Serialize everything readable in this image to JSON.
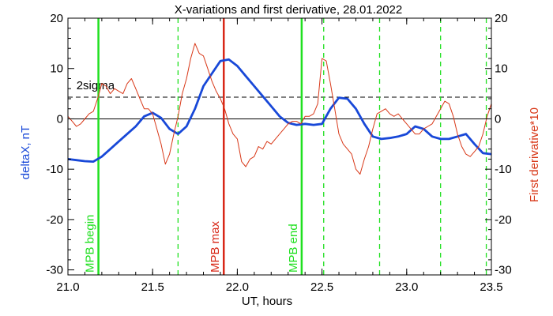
{
  "chart_data": {
    "type": "line",
    "title": "X-variations and first derivative, 28.01.2022",
    "xlabel": "UT, hours",
    "ylabel_left": "deltaX, nT",
    "ylabel_right": "First derivative*10",
    "xlim": [
      21.0,
      23.5
    ],
    "ylim": [
      -31,
      20
    ],
    "xticks": [
      21.0,
      21.5,
      22.0,
      22.5,
      23.0,
      23.5
    ],
    "xtick_labels": [
      "21.0",
      "21.5",
      "22.0",
      "22.5",
      "23.0",
      "23.5"
    ],
    "yticks": [
      20,
      10,
      0,
      -10,
      -20,
      -30
    ],
    "ytick_labels": [
      "20",
      "10",
      "0",
      "-10",
      "-20",
      "-30"
    ],
    "sigma_level": 4.3,
    "sigma_label": "2sigma",
    "colors": {
      "deltaX": "#1848d8",
      "derivative": "#d83818",
      "mpb_boundary": "#20e020",
      "mpb_max": "#d82818",
      "axis": "#000000"
    },
    "series": [
      {
        "name": "deltaX",
        "x": [
          21.0,
          21.05,
          21.1,
          21.15,
          21.2,
          21.25,
          21.3,
          21.35,
          21.4,
          21.45,
          21.5,
          21.55,
          21.6,
          21.65,
          21.7,
          21.75,
          21.8,
          21.85,
          21.9,
          21.95,
          22.0,
          22.05,
          22.1,
          22.15,
          22.2,
          22.25,
          22.3,
          22.35,
          22.4,
          22.45,
          22.5,
          22.55,
          22.6,
          22.65,
          22.7,
          22.75,
          22.8,
          22.85,
          22.9,
          22.95,
          23.0,
          23.05,
          23.1,
          23.15,
          23.2,
          23.25,
          23.3,
          23.35,
          23.4,
          23.45,
          23.5
        ],
        "y": [
          -8.0,
          -8.2,
          -8.4,
          -8.5,
          -7.5,
          -6.0,
          -4.5,
          -3.0,
          -1.5,
          0.5,
          1.2,
          0.2,
          -2.0,
          -3.0,
          -1.5,
          2.0,
          6.5,
          9.0,
          11.5,
          11.8,
          10.5,
          8.5,
          6.5,
          4.5,
          2.5,
          0.5,
          -0.8,
          -1.2,
          -1.0,
          -1.2,
          -1.0,
          2.0,
          4.2,
          4.0,
          2.0,
          -1.0,
          -3.5,
          -4.0,
          -3.8,
          -3.5,
          -3.0,
          -1.5,
          -2.0,
          -3.5,
          -4.0,
          -4.0,
          -3.5,
          -3.0,
          -5.0,
          -6.8,
          -7.0
        ]
      },
      {
        "name": "First derivative*10",
        "x": [
          21.0,
          21.025,
          21.05,
          21.075,
          21.1,
          21.125,
          21.15,
          21.175,
          21.2,
          21.225,
          21.25,
          21.275,
          21.3,
          21.325,
          21.35,
          21.375,
          21.4,
          21.425,
          21.45,
          21.475,
          21.5,
          21.525,
          21.55,
          21.575,
          21.6,
          21.625,
          21.65,
          21.675,
          21.7,
          21.725,
          21.75,
          21.775,
          21.8,
          21.825,
          21.85,
          21.875,
          21.9,
          21.925,
          21.95,
          21.975,
          22.0,
          22.025,
          22.05,
          22.075,
          22.1,
          22.125,
          22.15,
          22.175,
          22.2,
          22.225,
          22.25,
          22.275,
          22.3,
          22.325,
          22.35,
          22.375,
          22.4,
          22.425,
          22.45,
          22.475,
          22.5,
          22.525,
          22.55,
          22.575,
          22.6,
          22.625,
          22.65,
          22.675,
          22.7,
          22.725,
          22.75,
          22.775,
          22.8,
          22.825,
          22.85,
          22.875,
          22.9,
          22.925,
          22.95,
          22.975,
          23.0,
          23.025,
          23.05,
          23.075,
          23.1,
          23.125,
          23.15,
          23.175,
          23.2,
          23.225,
          23.25,
          23.275,
          23.3,
          23.325,
          23.35,
          23.375,
          23.4,
          23.425,
          23.45,
          23.475,
          23.5
        ],
        "y": [
          0.5,
          -0.5,
          -1.5,
          -1.0,
          0.0,
          1.0,
          1.5,
          4.0,
          7.0,
          6.5,
          5.0,
          6.0,
          5.5,
          5.0,
          7.0,
          8.0,
          6.0,
          4.0,
          2.0,
          2.0,
          1.0,
          -2.0,
          -5.0,
          -9.0,
          -7.0,
          -3.0,
          0.5,
          5.0,
          8.0,
          12.0,
          15.0,
          13.0,
          12.5,
          10.0,
          7.5,
          5.5,
          4.0,
          2.0,
          -1.0,
          -3.0,
          -4.0,
          -8.5,
          -9.5,
          -8.0,
          -7.5,
          -5.5,
          -6.0,
          -4.5,
          -5.0,
          -4.0,
          -3.0,
          -2.0,
          -1.0,
          -0.5,
          -0.5,
          -1.0,
          0.5,
          0.5,
          1.0,
          3.0,
          12.0,
          11.5,
          7.0,
          2.0,
          -3.0,
          -5.0,
          -6.0,
          -7.0,
          -10.0,
          -11.0,
          -8.0,
          -5.5,
          -2.0,
          1.0,
          1.5,
          2.0,
          1.0,
          0.5,
          1.0,
          0.0,
          -1.0,
          -2.0,
          -3.0,
          -3.0,
          -2.0,
          -1.5,
          -1.0,
          0.5,
          2.0,
          3.5,
          3.0,
          0.5,
          -3.0,
          -5.5,
          -7.0,
          -7.5,
          -6.5,
          -5.5,
          -3.0,
          0.5,
          3.0
        ]
      }
    ],
    "markers": [
      {
        "x": 21.18,
        "label": "MPB begin",
        "style": "solid",
        "color": "#20e020"
      },
      {
        "x": 21.65,
        "style": "dashed",
        "color": "#20e020"
      },
      {
        "x": 21.92,
        "label": "MPB max",
        "style": "solid",
        "color": "#d82818"
      },
      {
        "x": 22.38,
        "label": "MPB end",
        "style": "solid",
        "color": "#20e020"
      },
      {
        "x": 22.51,
        "style": "dashed",
        "color": "#20e020"
      },
      {
        "x": 22.84,
        "style": "dashed",
        "color": "#20e020"
      },
      {
        "x": 23.2,
        "style": "dashed",
        "color": "#20e020"
      },
      {
        "x": 23.47,
        "style": "dashed",
        "color": "#20e020"
      }
    ],
    "grid": false
  }
}
